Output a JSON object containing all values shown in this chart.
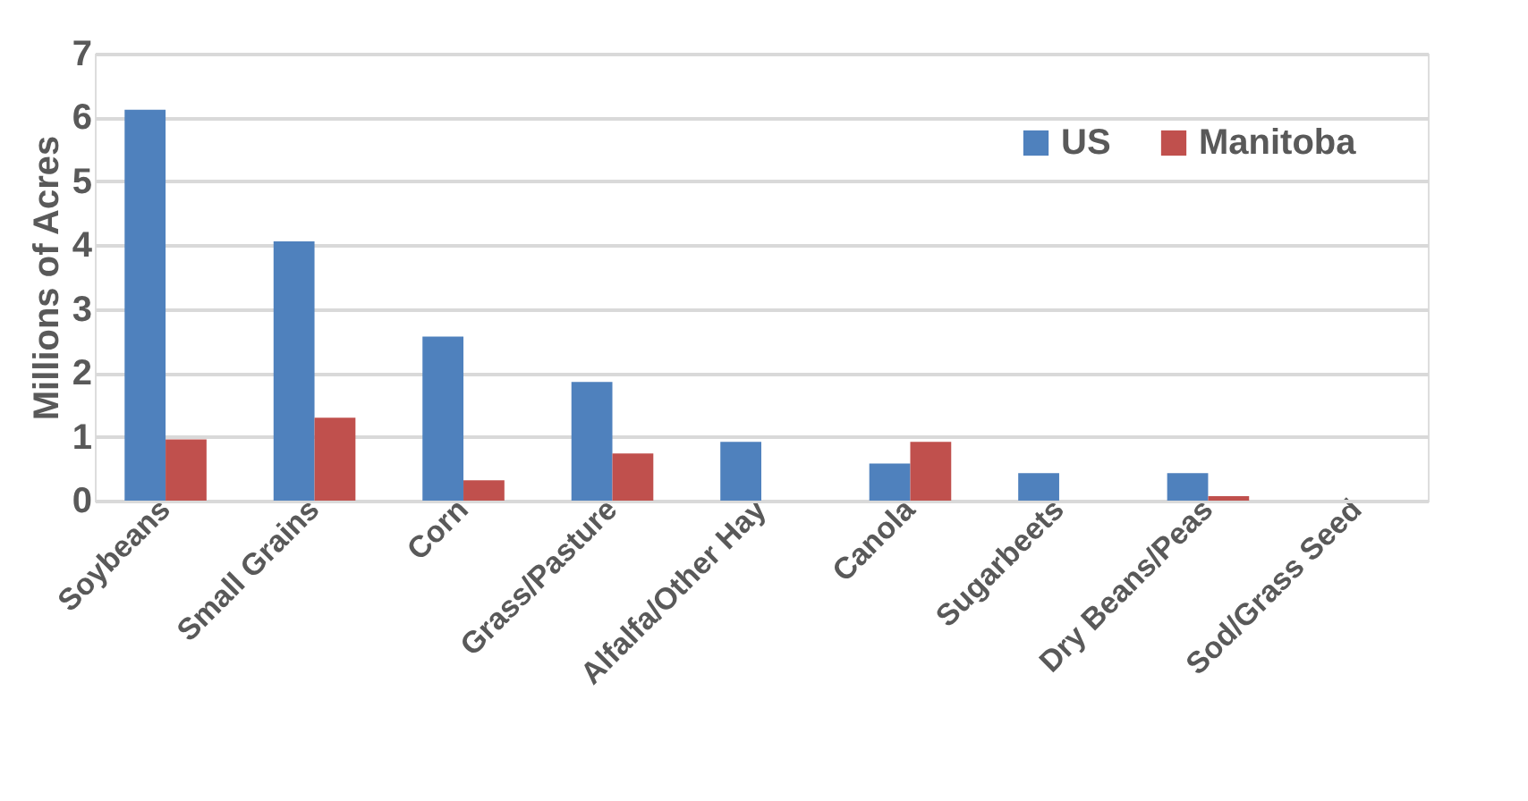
{
  "chart_data": {
    "type": "bar",
    "ylabel": "Millions of Acres",
    "categories": [
      "Soybeans",
      "Small Grains",
      "Corn",
      "Grass/Pasture",
      "Alfalfa/Other Hay",
      "Canola",
      "Sugarbeets",
      "Dry Beans/Peas",
      "Sod/Grass Seed"
    ],
    "series": [
      {
        "name": "US",
        "color": "#4f81bd",
        "values": [
          6.12,
          4.06,
          2.57,
          1.86,
          0.92,
          0.58,
          0.43,
          0.43,
          0
        ]
      },
      {
        "name": "Manitoba",
        "color": "#c0504d",
        "values": [
          0.96,
          1.3,
          0.32,
          0.74,
          0,
          0.92,
          0,
          0.07,
          0
        ]
      }
    ],
    "ylim": [
      0,
      7
    ],
    "yticks": [
      0,
      1,
      2,
      3,
      4,
      5,
      6,
      7
    ],
    "grid": "y",
    "legend": "top right"
  }
}
